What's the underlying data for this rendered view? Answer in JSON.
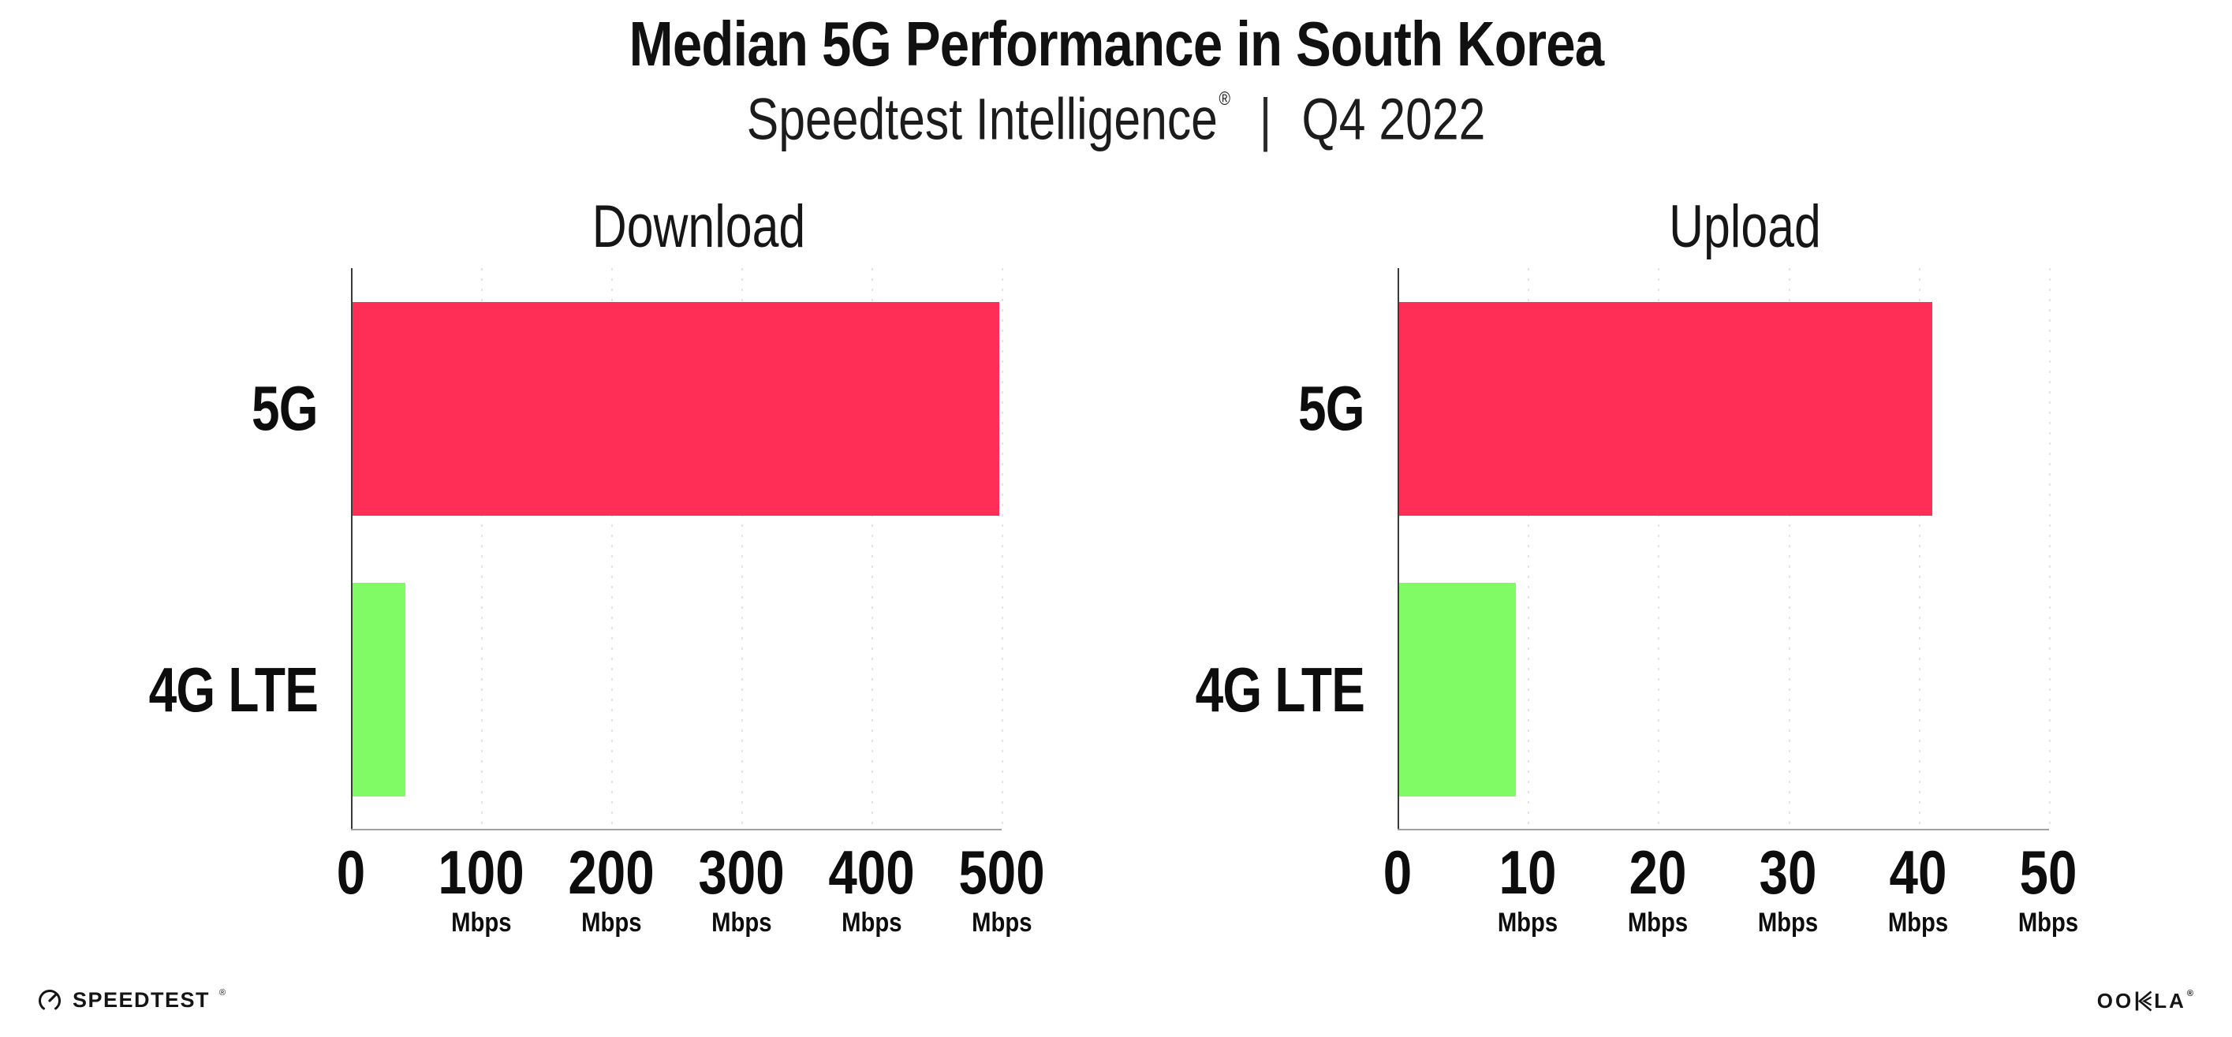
{
  "header": {
    "title": "Median 5G Performance in South Korea",
    "subtitle_brand": "Speedtest Intelligence",
    "subtitle_registered": "®",
    "subtitle_divider": "|",
    "subtitle_period": "Q4 2022"
  },
  "chart_data": [
    {
      "type": "bar",
      "orientation": "horizontal",
      "title": "Download",
      "categories": [
        "5G",
        "4G LTE"
      ],
      "values": [
        498,
        41
      ],
      "unit": "Mbps",
      "xlabel": "",
      "ylabel": "",
      "xlim": [
        0,
        500
      ],
      "xticks": [
        0,
        100,
        200,
        300,
        400,
        500
      ],
      "bar_colors": [
        "#FF2E56",
        "#80FB66"
      ],
      "grid": "vertical-dotted",
      "legend_position": "none"
    },
    {
      "type": "bar",
      "orientation": "horizontal",
      "title": "Upload",
      "categories": [
        "5G",
        "4G LTE"
      ],
      "values": [
        41,
        9
      ],
      "unit": "Mbps",
      "xlabel": "",
      "ylabel": "",
      "xlim": [
        0,
        50
      ],
      "xticks": [
        0,
        10,
        20,
        30,
        40,
        50
      ],
      "bar_colors": [
        "#FF2E56",
        "#80FB66"
      ],
      "grid": "vertical-dotted",
      "legend_position": "none"
    }
  ],
  "footer": {
    "speedtest_wordmark": "SPEEDTEST",
    "speedtest_registered": "®",
    "ookla_wordmark_left": "OO",
    "ookla_wordmark_k": "K",
    "ookla_wordmark_right": "LA",
    "ookla_registered": "®"
  },
  "colors": {
    "background": "#FFFFFF",
    "bar_5g": "#FF2E56",
    "bar_4g_lte": "#80FB66",
    "gridline": "#E3E3EF",
    "y_axis": "#3A3A3A",
    "x_axis": "#A0A0A0",
    "text": "#111111"
  }
}
